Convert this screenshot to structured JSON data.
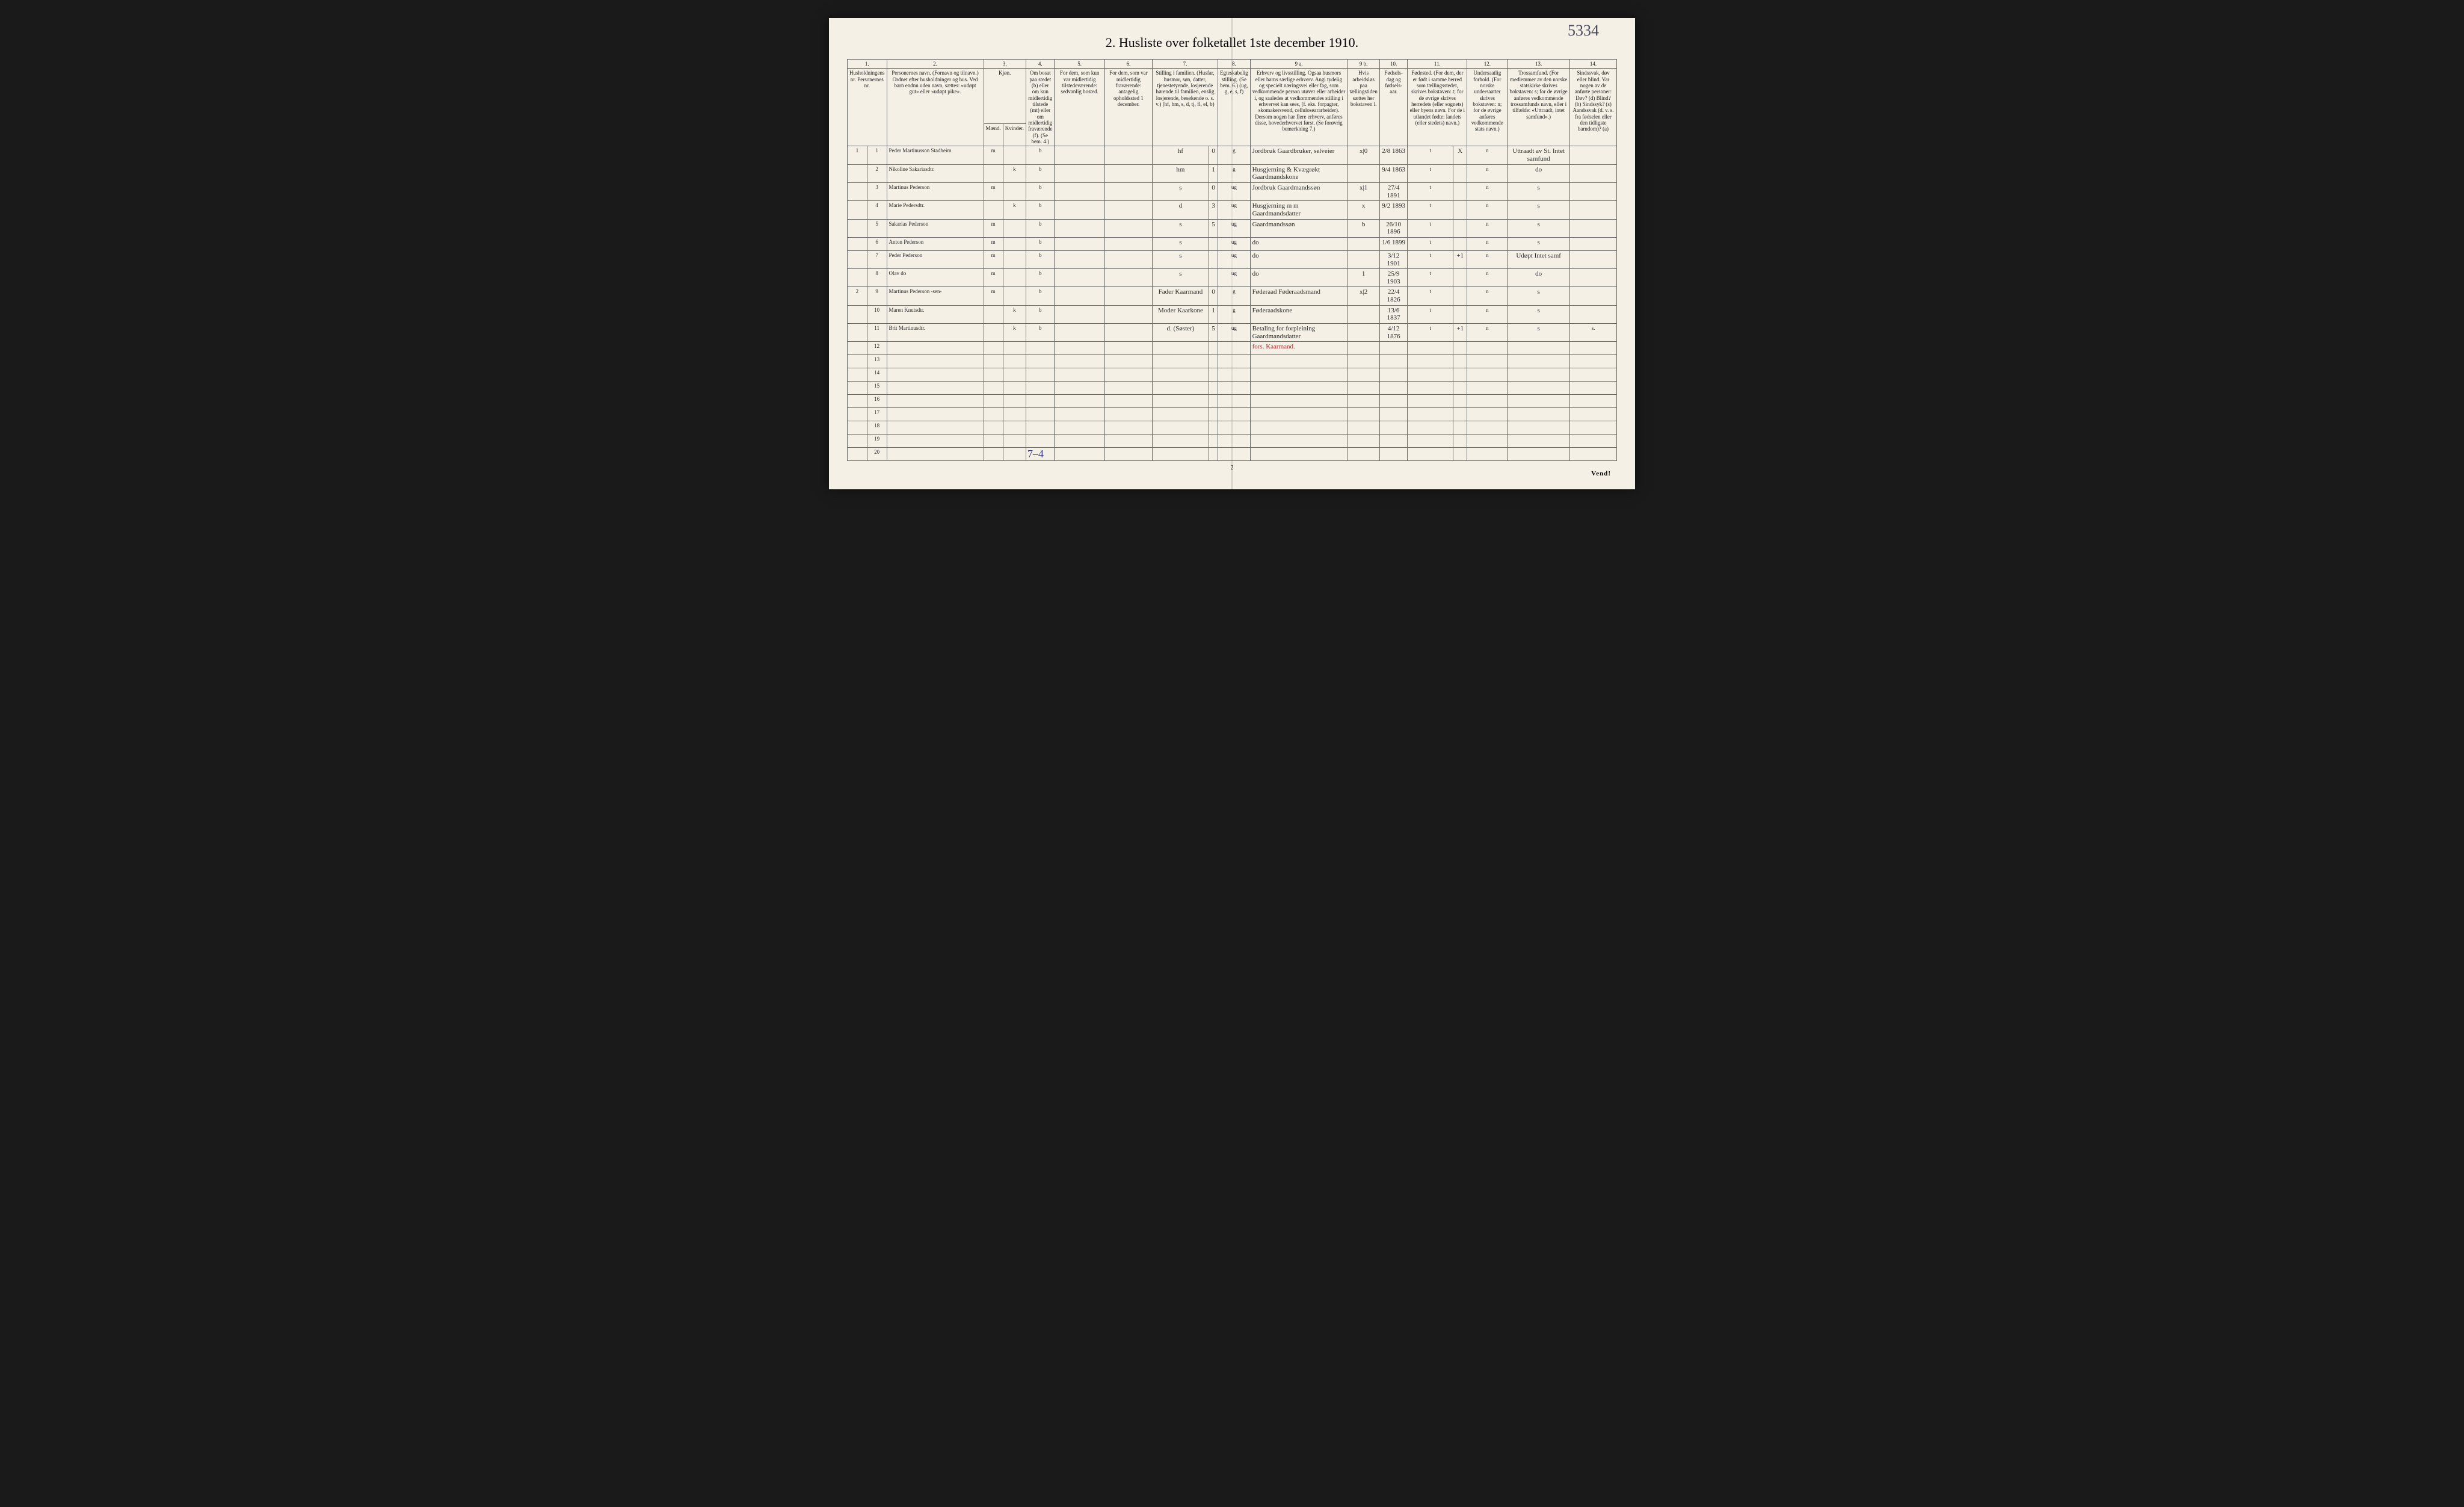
{
  "title": "2. Husliste over folketallet 1ste december 1910.",
  "handwritten_top": "5334",
  "page_number_bottom": "2",
  "vend": "Vend!",
  "tally": "7–4",
  "col_numbers": [
    "1.",
    "2.",
    "3.",
    "4.",
    "5.",
    "6.",
    "7.",
    "8.",
    "9 a.",
    "9 b.",
    "10.",
    "11.",
    "12.",
    "13.",
    "14."
  ],
  "headers": {
    "c1": "Husholdningens nr.\nPersonernes nr.",
    "c2": "Personernes navn.\n(Fornavn og tilnavn.)\nOrdnet efter husholdninger og hus.\nVed barn endnu uden navn, sættes: «udøpt gut» eller «udøpt pike».",
    "c3": "Kjøn.",
    "c3a": "Mænd.",
    "c3b": "Kvinder.",
    "c3sub": "m. | k.",
    "c4": "Om bosat paa stedet (b) eller om kun midlertidig tilstede (mt) eller om midlertidig fraværende (f). (Se bem. 4.)",
    "c5": "For dem, som kun var midlertidig tilstedeværende:\nsedvanlig bosted.",
    "c6": "For dem, som var midlertidig fraværende:\nantagelig opholdssted 1 december.",
    "c7": "Stilling i familien.\n(Husfar, husmor, søn, datter, tjenestetyende, losjerende hørende til familien, enslig losjerende, besøkende o. s. v.)\n(hf, hm, s, d, tj, fl, el, b)",
    "c8": "Egteskabelig stilling.\n(Se bem. 6.)\n(ug, g, e, s, f)",
    "c9a": "Erhverv og livsstilling.\nOgsaa husmors eller barns særlige erhverv. Angi tydelig og specielt næringsvei eller fag, som vedkommende person utøver eller arbeider i, og saaledes at vedkommendes stilling i erhvervet kan sees, (f. eks. forpagter, skomakersvend, celluloseararbeider). Dersom nogen har flere erhverv, anføres disse, hovederhvervet først.\n(Se forøvrig bemerkning 7.)",
    "c9b": "Hvis arbeidsløs paa tællingstiden sættes her bokstaven l.",
    "c10": "Fødsels-dag og fødsels-aar.",
    "c11": "Fødested.\n(For dem, der er født i samme herred som tællingsstedet, skrives bokstaven: t; for de øvrige skrives herredets (eller sognets) eller byens navn. For de i utlandet fødte: landets (eller stedets) navn.)",
    "c12": "Undersaatlig forhold.\n(For norske undersaatter skrives bokstaven: n; for de øvrige anføres vedkommende stats navn.)",
    "c13": "Trossamfund.\n(For medlemmer av den norske statskirke skrives bokstaven: s; for de øvrige anføres vedkommende trossamfunds navn, eller i tilfælde: «Uttraadt, intet samfund».)",
    "c14": "Sindssvak, døv eller blind.\nVar nogen av de anførte personer:\nDøv? (d)\nBlind? (b)\nSindssyk? (s)\nAandssvak (d. v. s. fra fødselen eller den tidligste barndom)? (a)"
  },
  "rows": [
    {
      "hh": "1",
      "pn": "1",
      "name": "Peder Martinusson Stadheim",
      "sex": "m",
      "res": "b",
      "c5": "",
      "c6": "",
      "rel": "hf",
      "rel2": "0",
      "mar": "g",
      "occ": "Jordbruk Gaardbruker, selveier",
      "occx": "x|0",
      "dob": "2/8 1863",
      "birthplace": "t",
      "x11": "X",
      "nat": "n",
      "rel13": "Uttraadt av St. Intet samfund",
      "c14": ""
    },
    {
      "hh": "",
      "pn": "2",
      "name": "Nikoline Sakariasdtr.",
      "sex": "k",
      "res": "b",
      "c5": "",
      "c6": "",
      "rel": "hm",
      "rel2": "1",
      "mar": "g",
      "occ": "Husgjerning & Kvægrøkt Gaardmandskone",
      "occx": "",
      "dob": "9/4 1863",
      "birthplace": "t",
      "x11": "",
      "nat": "n",
      "rel13": "do",
      "c14": ""
    },
    {
      "hh": "",
      "pn": "3",
      "name": "Martinus Pederson",
      "sex": "m",
      "res": "b",
      "c5": "",
      "c6": "",
      "rel": "s",
      "rel2": "0",
      "mar": "ug",
      "occ": "Jordbruk Gaardmandssøn",
      "occx": "x|1",
      "dob": "27/4 1891",
      "birthplace": "t",
      "x11": "",
      "nat": "n",
      "rel13": "s",
      "c14": ""
    },
    {
      "hh": "",
      "pn": "4",
      "name": "Marie Pedersdtr.",
      "sex": "k",
      "res": "b",
      "c5": "",
      "c6": "",
      "rel": "d",
      "rel2": "3",
      "mar": "ug",
      "occ": "Husgjerning m m Gaardmandsdatter",
      "occx": "x",
      "dob": "9/2 1893",
      "birthplace": "t",
      "x11": "",
      "nat": "n",
      "rel13": "s",
      "c14": ""
    },
    {
      "hh": "",
      "pn": "5",
      "name": "Sakarias Pederson",
      "sex": "m",
      "res": "b",
      "c5": "",
      "c6": "",
      "rel": "s",
      "rel2": "5",
      "mar": "ug",
      "occ": "Gaardmandssøn",
      "occx": "b",
      "dob": "26/10 1896",
      "birthplace": "t",
      "x11": "",
      "nat": "n",
      "rel13": "s",
      "c14": ""
    },
    {
      "hh": "",
      "pn": "6",
      "name": "Anton Pederson",
      "sex": "m",
      "res": "b",
      "c5": "",
      "c6": "",
      "rel": "s",
      "rel2": "",
      "mar": "ug",
      "occ": "do",
      "occx": "",
      "dob": "1/6 1899",
      "birthplace": "t",
      "x11": "",
      "nat": "n",
      "rel13": "s",
      "c14": ""
    },
    {
      "hh": "",
      "pn": "7",
      "name": "Peder Pederson",
      "sex": "m",
      "res": "b",
      "c5": "",
      "c6": "",
      "rel": "s",
      "rel2": "",
      "mar": "ug",
      "occ": "do",
      "occx": "",
      "dob": "3/12 1901",
      "birthplace": "t",
      "x11": "+1",
      "nat": "n",
      "rel13": "Udøpt Intet samf",
      "c14": ""
    },
    {
      "hh": "",
      "pn": "8",
      "name": "Olav   do",
      "sex": "m",
      "res": "b",
      "c5": "",
      "c6": "",
      "rel": "s",
      "rel2": "",
      "mar": "ug",
      "occ": "do",
      "occx": "1",
      "dob": "25/9 1903",
      "birthplace": "t",
      "x11": "",
      "nat": "n",
      "rel13": "do",
      "c14": ""
    },
    {
      "hh": "2",
      "pn": "9",
      "name": "Martinus Pederson -sen-",
      "sex": "m",
      "res": "b",
      "c5": "",
      "c6": "",
      "rel": "Fader Kaarmand",
      "rel2": "0",
      "mar": "g",
      "occ": "Føderaad Føderaadsmand",
      "occx": "x|2",
      "dob": "22/4 1826",
      "birthplace": "t",
      "x11": "",
      "nat": "n",
      "rel13": "s",
      "c14": ""
    },
    {
      "hh": "",
      "pn": "10",
      "name": "Maren Knutsdtr.",
      "sex": "k",
      "res": "b",
      "c5": "",
      "c6": "",
      "rel": "Moder Kaarkone",
      "rel2": "1",
      "mar": "g",
      "occ": "Føderaadskone",
      "occx": "",
      "dob": "13/6 1837",
      "birthplace": "t",
      "x11": "",
      "nat": "n",
      "rel13": "s",
      "c14": ""
    },
    {
      "hh": "",
      "pn": "11",
      "name": "Brit Martinusdtr.",
      "sex": "k",
      "res": "b",
      "c5": "",
      "c6": "",
      "rel": "d. (Søster)",
      "rel2": "5",
      "mar": "ug",
      "occ": "Betaling for forpleining Gaardmandsdatter",
      "occx": "",
      "dob": "4/12 1876",
      "birthplace": "t",
      "x11": "+1",
      "nat": "n",
      "rel13": "s",
      "c14": "s."
    },
    {
      "hh": "",
      "pn": "12",
      "name": "",
      "sex": "",
      "res": "",
      "c5": "",
      "c6": "",
      "rel": "",
      "rel2": "",
      "mar": "",
      "occ": "fors. Kaarmand.",
      "occx": "",
      "dob": "",
      "birthplace": "",
      "x11": "",
      "nat": "",
      "rel13": "",
      "c14": "",
      "red": true
    },
    {
      "hh": "",
      "pn": "13"
    },
    {
      "hh": "",
      "pn": "14"
    },
    {
      "hh": "",
      "pn": "15"
    },
    {
      "hh": "",
      "pn": "16"
    },
    {
      "hh": "",
      "pn": "17"
    },
    {
      "hh": "",
      "pn": "18"
    },
    {
      "hh": "",
      "pn": "19"
    },
    {
      "hh": "",
      "pn": "20"
    }
  ],
  "col_widths": {
    "hh": "18px",
    "pn": "18px",
    "name": "200px",
    "sexm": "16px",
    "sexk": "16px",
    "res": "42px",
    "c5": "90px",
    "c6": "90px",
    "rel": "110px",
    "rel2": "16px",
    "mar": "42px",
    "occ": "190px",
    "occx": "24px",
    "dob": "50px",
    "birth": "90px",
    "x11": "24px",
    "nat": "70px",
    "rel13": "120px",
    "c14": "90px"
  },
  "colors": {
    "paper": "#f4f0e6",
    "border": "#6a6a6a",
    "ink": "#2a2a2a",
    "red": "#b03030",
    "blue": "#3a3a8a"
  }
}
